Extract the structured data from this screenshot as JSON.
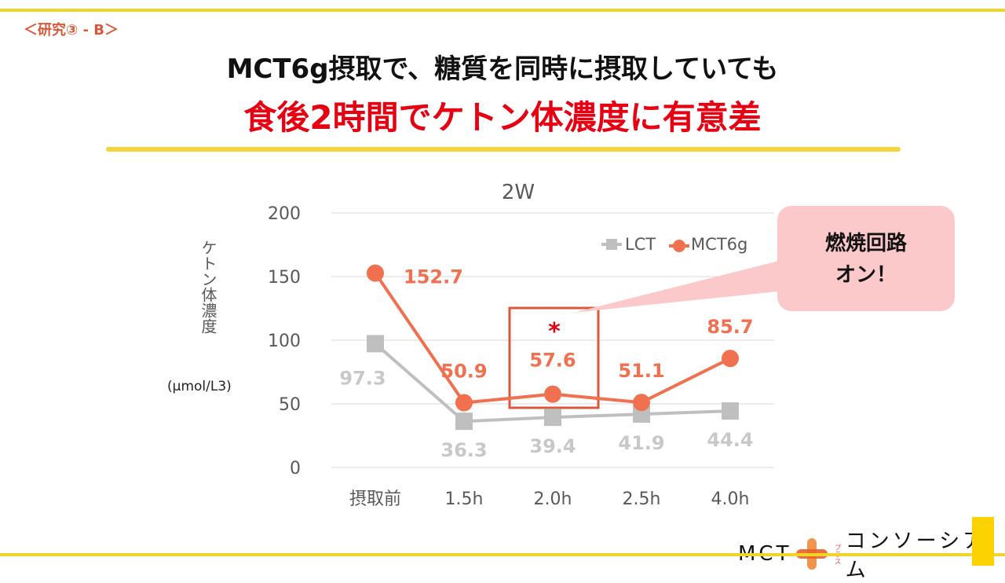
{
  "slide": {
    "tag": "＜研究③ - B＞",
    "title_line1": "MCT6g摂取で、糖質を同時に摂取していても",
    "title_line2": "食後2時間でケトン体濃度に有意差",
    "callout": [
      "燃焼回路",
      "オン！"
    ],
    "significance_mark": "*",
    "logo": {
      "left": "MCT",
      "small": "プラス",
      "right": "コンソーシアム"
    }
  },
  "colors": {
    "lct": "#bfbfbf",
    "mct": "#f07050",
    "highlight_box": "#d9583a",
    "callout_fill": "#fcc9cb",
    "accent_yellow": "#f2d32a",
    "title_red": "#e60012"
  },
  "chart_data": {
    "type": "line",
    "title": "2W",
    "ylabel": "ケトン体濃度",
    "yunit": "(μmol/L3)",
    "categories": [
      "摂取前",
      "1.5h",
      "2.0h",
      "2.5h",
      "4.0h"
    ],
    "ylim": [
      0,
      200
    ],
    "yticks": [
      "0",
      "50",
      "100",
      "150",
      "200"
    ],
    "grid": true,
    "legend_position": "top-right",
    "series": [
      {
        "name": "LCT",
        "marker": "square",
        "values": [
          97.3,
          36.3,
          39.4,
          41.9,
          44.4
        ],
        "labels": [
          "97.3",
          "36.3",
          "39.4",
          "41.9",
          "44.4"
        ]
      },
      {
        "name": "MCT6g",
        "marker": "circle",
        "values": [
          152.7,
          50.9,
          57.6,
          51.1,
          85.7
        ],
        "labels": [
          "152.7",
          "50.9",
          "57.6",
          "51.1",
          "85.7"
        ]
      }
    ],
    "highlight_category": "2.0h"
  }
}
